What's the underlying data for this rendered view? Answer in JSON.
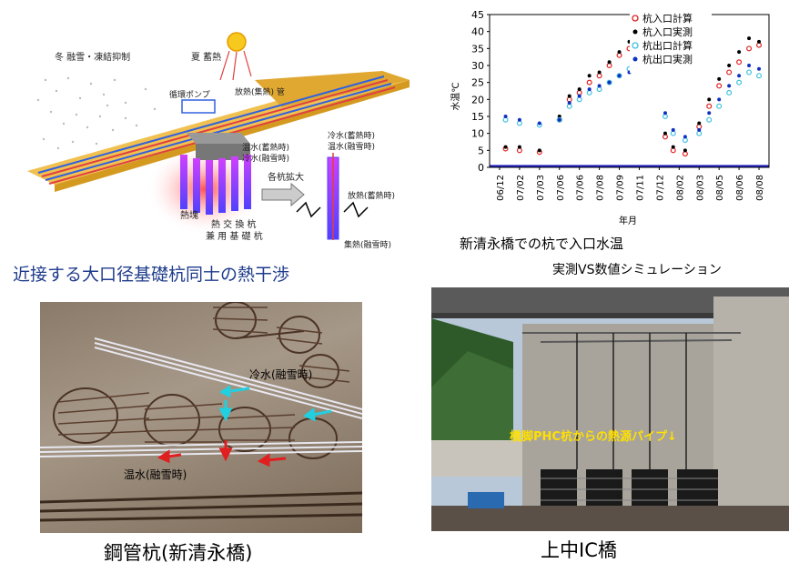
{
  "diagram": {
    "label_winter": "冬 融雪・凍結抑制",
    "label_summer": "夏 蓄熱",
    "label_radiation_pipe": "放熱(集熱) 管",
    "label_pump": "循環ポンプ",
    "label_warm_water": "温水(蓄熱時)",
    "label_cold_water": "冷水(融雪時)",
    "label_cold_water2": "冷水(蓄熱時)",
    "label_warm_water2": "温水(融雪時)",
    "label_expand": "各杭拡大",
    "label_heat_release": "放熱(蓄熱時)",
    "label_heat_collect": "集熱(融雪時)",
    "label_geothermal": "熱塊",
    "label_pile": "熱 交 換 杭\n兼 用 基 礎 杭"
  },
  "captions": {
    "top_left": "近接する大口径基礎杭同士の熱干渉",
    "chart_title_1": "新清永橋での杭で入口水温",
    "chart_title_2": "実測VS数値シミュレーション",
    "bottom_left": "鋼管杭(新清永橋)",
    "bottom_right": "上中IC橋"
  },
  "photo_left": {
    "label_cold": "冷水(融雪時)",
    "label_warm": "温水(融雪時)"
  },
  "photo_right": {
    "overlay": "橋脚PHC杭からの熱源パイプ↓"
  },
  "chart_data": {
    "type": "scatter",
    "ylabel": "水温℃",
    "xlabel": "年月",
    "ylim": [
      0,
      45
    ],
    "yticks": [
      "0",
      "5",
      "10",
      "15",
      "20",
      "25",
      "30",
      "35",
      "40",
      "45"
    ],
    "xticks": [
      "06/12",
      "07/02",
      "07/03",
      "07/06",
      "07/06",
      "07/08",
      "07/09",
      "07/11",
      "07/12",
      "08/02",
      "08/03",
      "08/05",
      "08/06",
      "08/08"
    ],
    "legend_position": "top-right",
    "series": [
      {
        "name": "杭入口計算",
        "color": "#e02020",
        "marker": "circle-open",
        "points": [
          [
            0.3,
            5.5
          ],
          [
            1,
            5
          ],
          [
            2,
            4.5
          ],
          [
            3,
            14
          ],
          [
            3.5,
            20
          ],
          [
            4,
            22
          ],
          [
            4.5,
            25
          ],
          [
            5,
            27
          ],
          [
            5.5,
            30
          ],
          [
            6,
            33
          ],
          [
            6.5,
            35
          ],
          [
            8.3,
            9
          ],
          [
            8.7,
            5
          ],
          [
            9.3,
            4
          ],
          [
            10,
            12
          ],
          [
            10.5,
            18
          ],
          [
            11,
            24
          ],
          [
            11.5,
            28
          ],
          [
            12,
            31
          ],
          [
            12.5,
            35
          ],
          [
            13,
            36
          ]
        ]
      },
      {
        "name": "杭入口実測",
        "color": "#000000",
        "marker": "dot",
        "points": [
          [
            0.3,
            6
          ],
          [
            1,
            6
          ],
          [
            2,
            5
          ],
          [
            3,
            15
          ],
          [
            3.5,
            21
          ],
          [
            4,
            23
          ],
          [
            4.5,
            27
          ],
          [
            5,
            28
          ],
          [
            5.5,
            31
          ],
          [
            6,
            34
          ],
          [
            6.5,
            37
          ],
          [
            8.3,
            10
          ],
          [
            8.7,
            6
          ],
          [
            9.3,
            5
          ],
          [
            10,
            13
          ],
          [
            10.5,
            20
          ],
          [
            11,
            26
          ],
          [
            11.5,
            30
          ],
          [
            12,
            34
          ],
          [
            12.5,
            38
          ],
          [
            13,
            37
          ]
        ]
      },
      {
        "name": "杭出口計算",
        "color": "#40c0e0",
        "marker": "circle-open",
        "points": [
          [
            0.3,
            14
          ],
          [
            1,
            13
          ],
          [
            2,
            12.5
          ],
          [
            3,
            14
          ],
          [
            3.5,
            18
          ],
          [
            4,
            20
          ],
          [
            4.5,
            22
          ],
          [
            5,
            23
          ],
          [
            5.5,
            25
          ],
          [
            6,
            27
          ],
          [
            6.5,
            29
          ],
          [
            8.3,
            15
          ],
          [
            8.7,
            10
          ],
          [
            9.3,
            8
          ],
          [
            10,
            10
          ],
          [
            10.5,
            14
          ],
          [
            11,
            18
          ],
          [
            11.5,
            22
          ],
          [
            12,
            25
          ],
          [
            12.5,
            28
          ],
          [
            13,
            27
          ]
        ]
      },
      {
        "name": "杭出口実測",
        "color": "#1030c0",
        "marker": "dot",
        "points": [
          [
            0.3,
            15
          ],
          [
            1,
            14
          ],
          [
            2,
            13
          ],
          [
            3,
            14
          ],
          [
            3.5,
            19
          ],
          [
            4,
            21
          ],
          [
            4.5,
            23
          ],
          [
            5,
            24
          ],
          [
            5.5,
            25
          ],
          [
            6,
            27
          ],
          [
            6.5,
            28
          ],
          [
            8.3,
            16
          ],
          [
            8.7,
            11
          ],
          [
            9.3,
            9
          ],
          [
            10,
            11
          ],
          [
            10.5,
            16
          ],
          [
            11,
            20
          ],
          [
            11.5,
            24
          ],
          [
            12,
            27
          ],
          [
            12.5,
            30
          ],
          [
            13,
            29
          ]
        ]
      }
    ]
  }
}
